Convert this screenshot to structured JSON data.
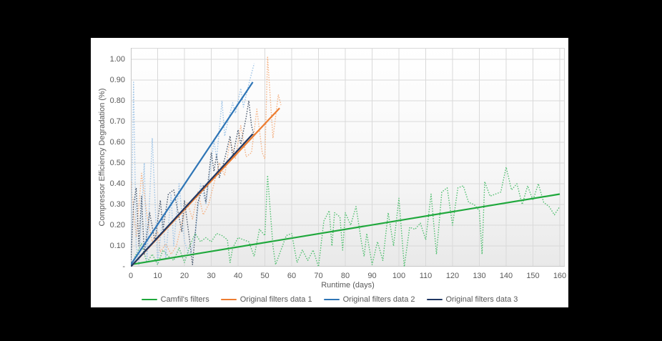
{
  "page": {
    "background": "#000000",
    "panel_background": "#ffffff"
  },
  "chart_data": {
    "type": "line",
    "title": "",
    "xlabel": "Runtime (days)",
    "ylabel": "Compressor Efficiency Degradation (%)",
    "xlim": [
      0,
      160
    ],
    "ylim": [
      0,
      1.05
    ],
    "grid": true,
    "legend_position": "bottom-center",
    "x_ticks": [
      0,
      10,
      20,
      30,
      40,
      50,
      60,
      70,
      80,
      90,
      100,
      110,
      120,
      130,
      140,
      150,
      160
    ],
    "y_ticks": [
      {
        "value": 0.0,
        "label": "-"
      },
      {
        "value": 0.1,
        "label": "0.10"
      },
      {
        "value": 0.2,
        "label": "0.20"
      },
      {
        "value": 0.3,
        "label": "0.30"
      },
      {
        "value": 0.4,
        "label": "0.40"
      },
      {
        "value": 0.5,
        "label": "0.50"
      },
      {
        "value": 0.6,
        "label": "0.60"
      },
      {
        "value": 0.7,
        "label": "0.70"
      },
      {
        "value": 0.8,
        "label": "0.80"
      },
      {
        "value": 0.9,
        "label": "0.90"
      },
      {
        "value": 1.0,
        "label": "1.00"
      }
    ],
    "series": [
      {
        "name": "Camfil's filters measured",
        "color": "#4FBE6E",
        "style": "dotted",
        "points": [
          [
            0,
            0.0
          ],
          [
            2,
            0.06
          ],
          [
            4,
            0.11
          ],
          [
            6,
            0.02
          ],
          [
            8,
            0.06
          ],
          [
            10,
            0.01
          ],
          [
            12,
            0.08
          ],
          [
            14,
            0.05
          ],
          [
            16,
            0.03
          ],
          [
            18,
            0.09
          ],
          [
            20,
            0.02
          ],
          [
            22,
            0.1
          ],
          [
            24,
            0.16
          ],
          [
            26,
            0.12
          ],
          [
            28,
            0.14
          ],
          [
            30,
            0.12
          ],
          [
            32,
            0.16
          ],
          [
            34,
            0.15
          ],
          [
            36,
            0.13
          ],
          [
            37,
            0.02
          ],
          [
            38,
            0.09
          ],
          [
            40,
            0.14
          ],
          [
            42,
            0.13
          ],
          [
            44,
            0.12
          ],
          [
            46,
            0.05
          ],
          [
            48,
            0.18
          ],
          [
            50,
            0.15
          ],
          [
            51,
            0.44
          ],
          [
            53,
            0.1
          ],
          [
            54,
            0.01
          ],
          [
            56,
            0.08
          ],
          [
            58,
            0.15
          ],
          [
            60,
            0.16
          ],
          [
            62,
            0.02
          ],
          [
            64,
            0.08
          ],
          [
            66,
            0.03
          ],
          [
            68,
            0.08
          ],
          [
            70,
            0.0
          ],
          [
            72,
            0.22
          ],
          [
            74,
            0.27
          ],
          [
            75,
            0.1
          ],
          [
            76,
            0.26
          ],
          [
            78,
            0.24
          ],
          [
            79,
            0.08
          ],
          [
            80,
            0.26
          ],
          [
            82,
            0.2
          ],
          [
            84,
            0.29
          ],
          [
            86,
            0.12
          ],
          [
            87,
            0.05
          ],
          [
            88,
            0.16
          ],
          [
            90,
            0.01
          ],
          [
            92,
            0.12
          ],
          [
            94,
            0.03
          ],
          [
            96,
            0.26
          ],
          [
            98,
            0.1
          ],
          [
            100,
            0.33
          ],
          [
            102,
            0.0
          ],
          [
            104,
            0.19
          ],
          [
            106,
            0.18
          ],
          [
            108,
            0.21
          ],
          [
            110,
            0.13
          ],
          [
            112,
            0.35
          ],
          [
            114,
            0.06
          ],
          [
            116,
            0.36
          ],
          [
            118,
            0.38
          ],
          [
            120,
            0.2
          ],
          [
            122,
            0.38
          ],
          [
            124,
            0.39
          ],
          [
            126,
            0.31
          ],
          [
            128,
            0.3
          ],
          [
            130,
            0.27
          ],
          [
            131,
            0.06
          ],
          [
            132,
            0.41
          ],
          [
            134,
            0.34
          ],
          [
            136,
            0.35
          ],
          [
            138,
            0.36
          ],
          [
            140,
            0.48
          ],
          [
            142,
            0.37
          ],
          [
            144,
            0.4
          ],
          [
            146,
            0.3
          ],
          [
            148,
            0.39
          ],
          [
            150,
            0.32
          ],
          [
            152,
            0.4
          ],
          [
            154,
            0.31
          ],
          [
            156,
            0.29
          ],
          [
            158,
            0.25
          ],
          [
            160,
            0.29
          ]
        ]
      },
      {
        "name": "Original filters data 1 measured",
        "color": "#F4B183",
        "style": "dotted",
        "points": [
          [
            0,
            0.41
          ],
          [
            2,
            0.14
          ],
          [
            4,
            0.45
          ],
          [
            6,
            0.25
          ],
          [
            8,
            0.12
          ],
          [
            10,
            0.17
          ],
          [
            11,
            0.07
          ],
          [
            13,
            0.11
          ],
          [
            15,
            0.06
          ],
          [
            17,
            0.1
          ],
          [
            19,
            0.21
          ],
          [
            21,
            0.31
          ],
          [
            23,
            0.23
          ],
          [
            25,
            0.36
          ],
          [
            27,
            0.25
          ],
          [
            29,
            0.3
          ],
          [
            31,
            0.4
          ],
          [
            33,
            0.5
          ],
          [
            35,
            0.44
          ],
          [
            37,
            0.61
          ],
          [
            39,
            0.52
          ],
          [
            41,
            0.68
          ],
          [
            43,
            0.53
          ],
          [
            45,
            0.55
          ],
          [
            47,
            0.76
          ],
          [
            49,
            0.55
          ],
          [
            50,
            0.52
          ],
          [
            51,
            1.01
          ],
          [
            53,
            0.62
          ],
          [
            55,
            0.83
          ],
          [
            56,
            0.78
          ]
        ]
      },
      {
        "name": "Original filters data 2 measured",
        "color": "#9DC3E6",
        "style": "dotted",
        "points": [
          [
            0,
            0.03
          ],
          [
            1,
            0.89
          ],
          [
            2,
            0.1
          ],
          [
            3,
            0.01
          ],
          [
            5,
            0.5
          ],
          [
            6,
            0.02
          ],
          [
            8,
            0.62
          ],
          [
            10,
            0.02
          ],
          [
            12,
            0.25
          ],
          [
            13,
            0.04
          ],
          [
            15,
            0.35
          ],
          [
            16,
            0.1
          ],
          [
            18,
            0.4
          ],
          [
            20,
            0.12
          ],
          [
            22,
            0.05
          ],
          [
            24,
            0.15
          ],
          [
            26,
            0.4
          ],
          [
            28,
            0.3
          ],
          [
            31,
            0.61
          ],
          [
            32,
            0.52
          ],
          [
            34,
            0.8
          ],
          [
            35,
            0.63
          ],
          [
            36,
            0.69
          ],
          [
            38,
            0.79
          ],
          [
            39,
            0.74
          ],
          [
            41,
            0.86
          ],
          [
            42,
            0.77
          ],
          [
            44,
            0.88
          ],
          [
            46,
            0.98
          ]
        ]
      },
      {
        "name": "Original filters data 3 measured",
        "color": "#44546A",
        "style": "dotted",
        "points": [
          [
            0,
            0.02
          ],
          [
            1,
            0.3
          ],
          [
            2,
            0.38
          ],
          [
            3,
            0.1
          ],
          [
            4,
            0.34
          ],
          [
            5,
            0.06
          ],
          [
            7,
            0.26
          ],
          [
            9,
            0.12
          ],
          [
            11,
            0.32
          ],
          [
            12,
            0.18
          ],
          [
            14,
            0.35
          ],
          [
            16,
            0.37
          ],
          [
            19,
            0.17
          ],
          [
            20,
            0.32
          ],
          [
            22,
            0.12
          ],
          [
            23,
            0.01
          ],
          [
            25,
            0.31
          ],
          [
            27,
            0.39
          ],
          [
            28,
            0.31
          ],
          [
            30,
            0.55
          ],
          [
            31,
            0.46
          ],
          [
            32,
            0.54
          ],
          [
            33,
            0.43
          ],
          [
            35,
            0.52
          ],
          [
            37,
            0.63
          ],
          [
            38,
            0.53
          ],
          [
            40,
            0.66
          ],
          [
            41,
            0.59
          ],
          [
            43,
            0.72
          ],
          [
            44,
            0.8
          ],
          [
            45,
            0.68
          ],
          [
            46,
            0.63
          ]
        ]
      },
      {
        "name": "Camfil's filters trend",
        "color": "#1FA83C",
        "style": "solid",
        "points": [
          [
            0,
            0.01
          ],
          [
            160,
            0.35
          ]
        ]
      },
      {
        "name": "Original filters data 2 trend",
        "color": "#2E75B6",
        "style": "solid",
        "points": [
          [
            0,
            0.01
          ],
          [
            45.5,
            0.89
          ]
        ]
      },
      {
        "name": "Original filters data 1 trend",
        "color": "#ED7D31",
        "style": "solid",
        "points": [
          [
            0,
            0.0
          ],
          [
            55.5,
            0.765
          ]
        ]
      },
      {
        "name": "Original filters data 3 trend",
        "color": "#203864",
        "style": "solid",
        "points": [
          [
            0,
            0.0
          ],
          [
            45.5,
            0.64
          ]
        ]
      }
    ],
    "legend": [
      {
        "label": "Camfil's filters",
        "color": "#1FA83C"
      },
      {
        "label": "Original filters data 1",
        "color": "#ED7D31"
      },
      {
        "label": "Original filters data 2",
        "color": "#2E75B6"
      },
      {
        "label": "Original filters data 3",
        "color": "#203864"
      }
    ],
    "style_hints": {
      "gridline_color": "#D9D9D9",
      "axis_line_color": "#C6C6C6",
      "tick_label_color": "#595959"
    }
  }
}
